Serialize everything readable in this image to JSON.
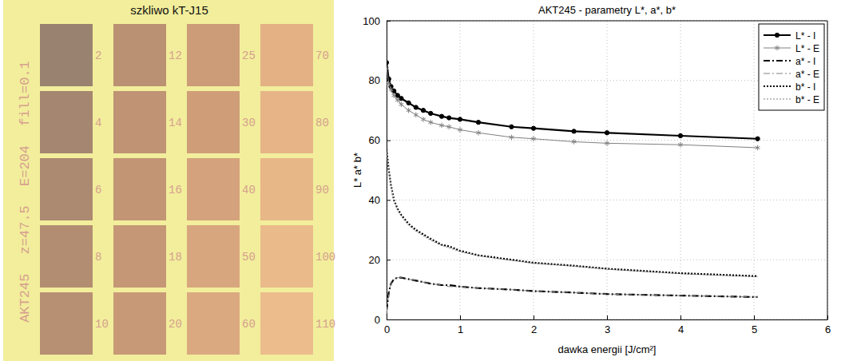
{
  "sample_panel": {
    "title": "szkliwo kT-J15",
    "label": "AKT245 z=47.5 E=204 fill=0.1",
    "patches": [
      {
        "label": 2,
        "color": "#9a8270"
      },
      {
        "label": 4,
        "color": "#a58670"
      },
      {
        "label": 6,
        "color": "#ac8a72"
      },
      {
        "label": 8,
        "color": "#b28d72"
      },
      {
        "label": 10,
        "color": "#b78f73"
      },
      {
        "label": 12,
        "color": "#bb9173"
      },
      {
        "label": 14,
        "color": "#bf9374"
      },
      {
        "label": 16,
        "color": "#c29575"
      },
      {
        "label": 18,
        "color": "#c59776"
      },
      {
        "label": 20,
        "color": "#c89977"
      },
      {
        "label": 25,
        "color": "#cc9b78"
      },
      {
        "label": 30,
        "color": "#cf9e79"
      },
      {
        "label": 40,
        "color": "#d4a27c"
      },
      {
        "label": 50,
        "color": "#d8a67e"
      },
      {
        "label": 60,
        "color": "#dba980"
      },
      {
        "label": 70,
        "color": "#e3b184"
      },
      {
        "label": 80,
        "color": "#e6b486"
      },
      {
        "label": 90,
        "color": "#e8b788"
      },
      {
        "label": 100,
        "color": "#eaba8a"
      },
      {
        "label": 110,
        "color": "#ecbc8c"
      }
    ]
  },
  "chart_data": {
    "type": "line",
    "title": "AKT245 - parametry L*, a*, b*",
    "x_label": "dawka energii [J/cm²]",
    "y_label": "L* a* b*",
    "x": [
      0,
      0.03,
      0.06,
      0.1,
      0.15,
      0.2,
      0.3,
      0.4,
      0.5,
      0.6,
      0.75,
      0.85,
      1,
      1.25,
      1.7,
      2,
      2.55,
      3,
      4,
      5.05
    ],
    "series": [
      {
        "name": "L* - I",
        "color": "#000000",
        "marker": "circle",
        "line_style": "solid",
        "values": [
          86,
          80.5,
          78,
          76.5,
          75,
          74,
          72.5,
          71,
          70,
          69,
          68,
          67.5,
          67,
          66,
          64.5,
          64,
          63,
          62.5,
          61.5,
          60.5
        ]
      },
      {
        "name": "L* - E",
        "color": "#808080",
        "marker": "star",
        "line_style": "solid",
        "values": [
          84,
          79,
          77,
          75,
          73.5,
          72,
          70,
          68.5,
          67,
          66,
          65,
          64.5,
          63.5,
          62.5,
          61,
          60.5,
          59.5,
          59,
          58.5,
          57.5
        ]
      },
      {
        "name": "a* - I",
        "color": "#000000",
        "marker": "none",
        "line_style": "dashdot",
        "values": [
          3,
          9,
          12,
          13.5,
          14,
          14,
          13.5,
          13,
          12.5,
          12,
          11.5,
          11.5,
          11,
          10.5,
          10,
          9.5,
          9,
          8.5,
          8,
          7.5
        ]
      },
      {
        "name": "a* - E",
        "color": "#808080",
        "marker": "none",
        "line_style": "dashdot",
        "values": [
          2,
          8.5,
          12,
          13.5,
          14,
          14,
          13.5,
          13,
          12.5,
          12,
          11.5,
          11,
          11,
          10.5,
          10,
          9.5,
          9,
          8.5,
          8,
          7.5
        ]
      },
      {
        "name": "b* - I",
        "color": "#000000",
        "marker": "none",
        "line_style": "dotted",
        "values": [
          57,
          50,
          45,
          40,
          37,
          35,
          32,
          30,
          28.5,
          27,
          25,
          24.5,
          23,
          21.5,
          20,
          19,
          18,
          17,
          15.5,
          14.5
        ]
      },
      {
        "name": "b* - E",
        "color": "#808080",
        "marker": "none",
        "line_style": "dotted",
        "values": [
          56,
          49.5,
          44.5,
          39.5,
          36.5,
          34.5,
          31.5,
          29.5,
          28,
          26.5,
          24.8,
          24,
          22.7,
          21.3,
          19.8,
          18.8,
          17.8,
          16.8,
          15.3,
          14.3
        ]
      }
    ],
    "xlim": [
      0,
      6
    ],
    "xticks": [
      0,
      1,
      2,
      3,
      4,
      5,
      6
    ],
    "ylim": [
      0,
      100
    ],
    "yticks": [
      0,
      20,
      40,
      60,
      80,
      100
    ],
    "grid": true,
    "legend": "top-right"
  }
}
